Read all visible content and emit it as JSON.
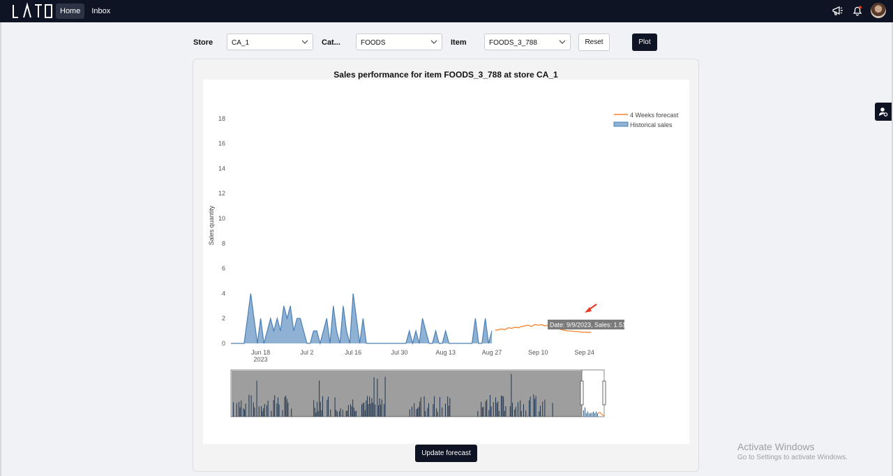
{
  "header": {
    "logo_text": "LATO",
    "nav": [
      {
        "label": "Home",
        "active": true
      },
      {
        "label": "Inbox",
        "active": false
      }
    ],
    "icons": [
      "megaphone-icon",
      "bell-icon",
      "avatar"
    ]
  },
  "filters": {
    "store_label": "Store",
    "store_value": "CA_1",
    "category_label": "Cat...",
    "category_value": "FOODS",
    "item_label": "Item",
    "item_value": "FOODS_3_788",
    "reset_label": "Reset",
    "plot_label": "Plot"
  },
  "update_forecast_label": "Update forecast",
  "side_tab_icon": "user-settings-icon",
  "watermark": {
    "line1": "Activate Windows",
    "line2": "Go to Settings to activate Windows."
  },
  "colors": {
    "header_bg": "#0e1424",
    "historical": "#4a7fb5",
    "historical_fill": "#8fb2d4",
    "forecast": "#f5822a",
    "arrow": "#e53b1f"
  },
  "chart_data": {
    "type": "area",
    "title": "Sales performance for item FOODS_3_788 at store CA_1",
    "xlabel": "",
    "ylabel": "Sales quantity",
    "ylim": [
      0,
      19
    ],
    "y_ticks": [
      "0",
      "2",
      "4",
      "6",
      "8",
      "10",
      "12",
      "14",
      "16",
      "18"
    ],
    "x_ticks": [
      "Jun 18",
      "Jul 2",
      "Jul 16",
      "Jul 30",
      "Aug 13",
      "Aug 27",
      "Sep 10",
      "Sep 24"
    ],
    "x_tick_sublabel": "2023",
    "x_range": [
      "2023-06-09",
      "2023-09-30"
    ],
    "legend_position": "top-right",
    "grid": false,
    "series": [
      {
        "name": "Historical sales",
        "style": "area",
        "x": [
          "2023-06-09",
          "2023-06-10",
          "2023-06-11",
          "2023-06-12",
          "2023-06-13",
          "2023-06-14",
          "2023-06-15",
          "2023-06-16",
          "2023-06-17",
          "2023-06-18",
          "2023-06-19",
          "2023-06-20",
          "2023-06-21",
          "2023-06-22",
          "2023-06-23",
          "2023-06-24",
          "2023-06-25",
          "2023-06-26",
          "2023-06-27",
          "2023-06-28",
          "2023-06-29",
          "2023-06-30",
          "2023-07-01",
          "2023-07-02",
          "2023-07-03",
          "2023-07-04",
          "2023-07-05",
          "2023-07-06",
          "2023-07-07",
          "2023-07-08",
          "2023-07-09",
          "2023-07-10",
          "2023-07-11",
          "2023-07-12",
          "2023-07-13",
          "2023-07-14",
          "2023-07-15",
          "2023-07-16",
          "2023-07-17",
          "2023-07-18",
          "2023-07-19",
          "2023-07-20",
          "2023-07-21",
          "2023-07-22",
          "2023-07-23",
          "2023-07-24",
          "2023-07-25",
          "2023-07-26",
          "2023-07-27",
          "2023-07-28",
          "2023-07-29",
          "2023-07-30",
          "2023-07-31",
          "2023-08-01",
          "2023-08-02",
          "2023-08-03",
          "2023-08-04",
          "2023-08-05",
          "2023-08-06",
          "2023-08-07",
          "2023-08-08",
          "2023-08-09",
          "2023-08-10",
          "2023-08-11",
          "2023-08-12",
          "2023-08-13",
          "2023-08-14",
          "2023-08-15",
          "2023-08-16",
          "2023-08-17",
          "2023-08-18",
          "2023-08-19",
          "2023-08-20",
          "2023-08-21",
          "2023-08-22",
          "2023-08-23",
          "2023-08-24",
          "2023-08-25",
          "2023-08-26",
          "2023-08-27"
        ],
        "y": [
          0,
          0,
          0,
          0,
          0,
          2,
          4,
          2,
          0,
          2,
          0,
          1,
          2,
          1,
          2,
          1,
          3,
          2,
          3,
          1,
          2,
          2,
          1,
          0,
          0,
          1,
          1,
          0,
          1,
          2,
          0,
          3,
          1,
          0,
          3,
          1,
          0,
          4,
          2,
          0,
          2,
          0,
          0,
          0,
          0,
          0,
          0,
          0,
          0,
          0,
          0,
          0,
          0,
          0,
          1,
          0,
          1,
          0,
          2,
          1,
          0,
          0,
          1,
          0,
          0,
          1,
          0,
          0,
          0,
          0,
          0,
          0,
          0,
          0,
          2,
          0,
          0,
          2,
          0,
          1
        ]
      },
      {
        "name": "4 Weeks forecast",
        "style": "line",
        "x": [
          "2023-08-28",
          "2023-08-29",
          "2023-08-30",
          "2023-08-31",
          "2023-09-01",
          "2023-09-02",
          "2023-09-03",
          "2023-09-04",
          "2023-09-05",
          "2023-09-06",
          "2023-09-07",
          "2023-09-08",
          "2023-09-09",
          "2023-09-10",
          "2023-09-11",
          "2023-09-12",
          "2023-09-13",
          "2023-09-14",
          "2023-09-15",
          "2023-09-16",
          "2023-09-17",
          "2023-09-18",
          "2023-09-19",
          "2023-09-20",
          "2023-09-21",
          "2023-09-22",
          "2023-09-23",
          "2023-09-24",
          "2023-09-25",
          "2023-09-26"
        ],
        "y": [
          1.05,
          1.1,
          1.15,
          1.1,
          1.25,
          1.2,
          1.3,
          1.25,
          1.35,
          1.4,
          1.45,
          1.35,
          1.51,
          1.45,
          1.5,
          1.4,
          1.45,
          1.35,
          1.25,
          1.2,
          1.1,
          1.05,
          1.0,
          1.0,
          0.95,
          0.95,
          0.9,
          0.9,
          0.88,
          0.88
        ]
      }
    ],
    "tooltip": "Date: 9/9/2023, Sales: 1.51",
    "range_slider": true
  }
}
